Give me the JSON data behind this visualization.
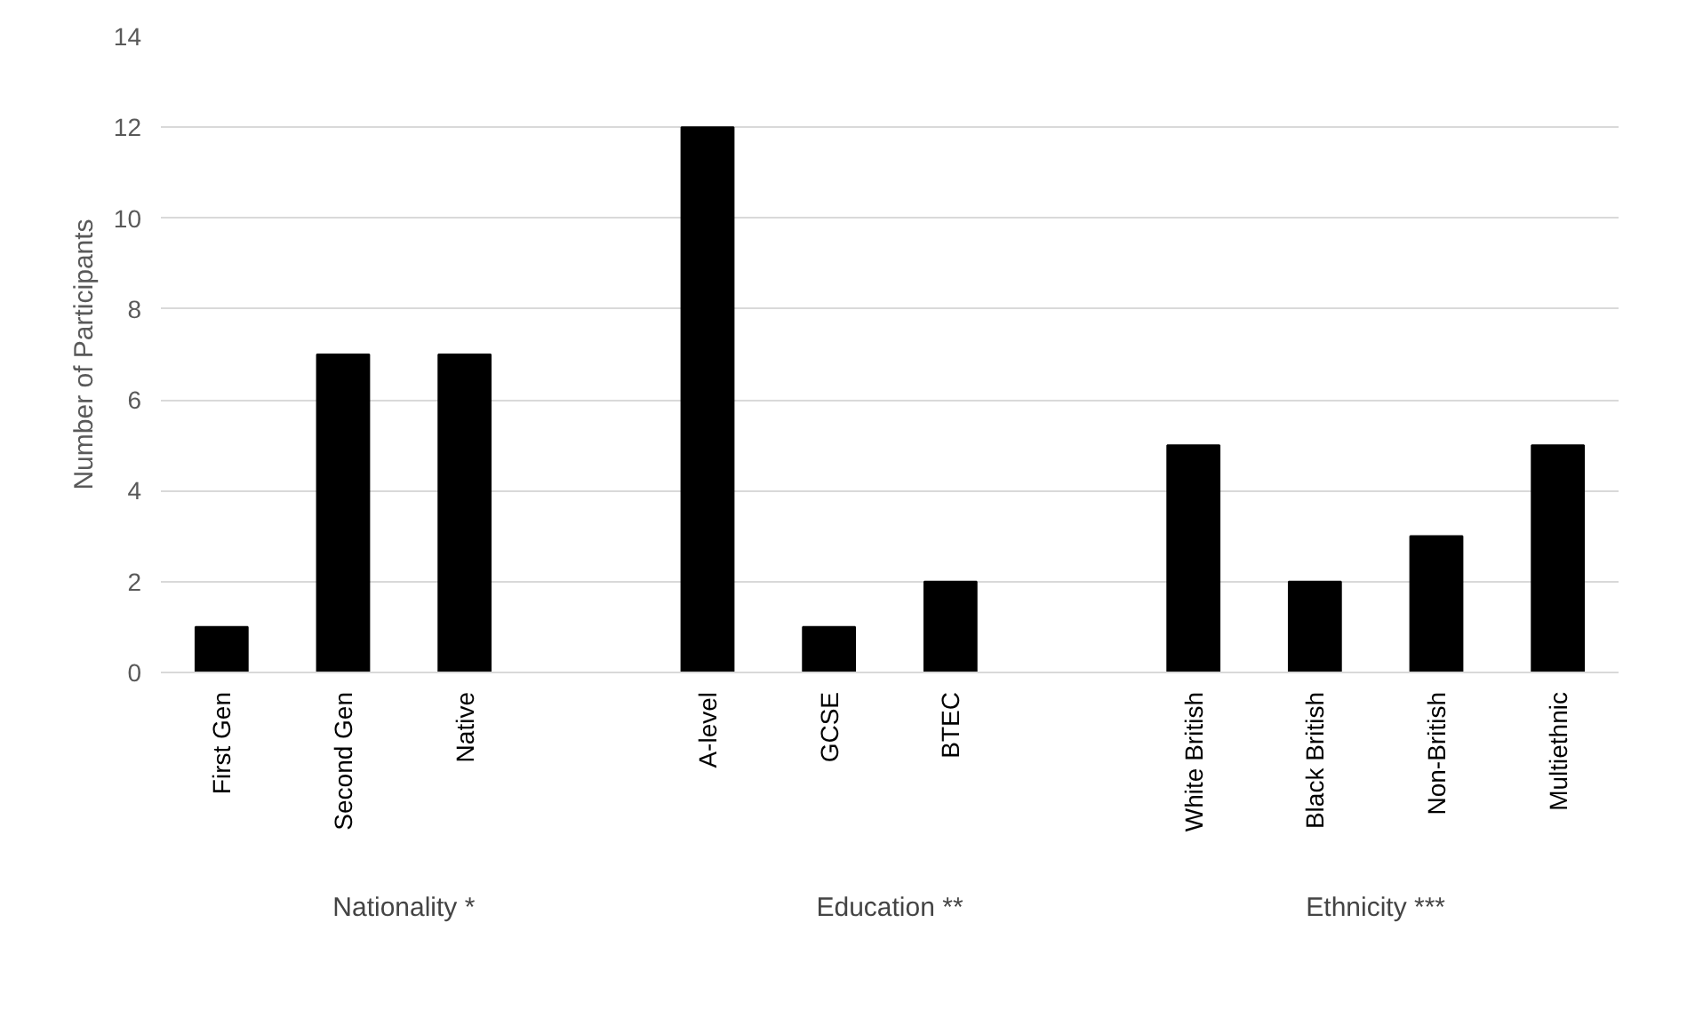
{
  "chart_data": {
    "type": "bar",
    "ylabel": "Number of Participants",
    "categories": [
      "First Gen",
      "Second Gen",
      "Native",
      null,
      "A-level",
      "GCSE",
      "BTEC",
      null,
      "White British",
      "Black British",
      "Non-British",
      "Multiethnic"
    ],
    "values": [
      1,
      7,
      7,
      null,
      12,
      1,
      2,
      null,
      5,
      2,
      3,
      5
    ],
    "color": "#000000",
    "ylim": [
      0,
      14
    ],
    "yticks": [
      0,
      2,
      4,
      6,
      8,
      10,
      12,
      14
    ],
    "grid": "y",
    "annotations": [
      "Nationality *",
      "Education **",
      "Ethnicity ***"
    ]
  }
}
